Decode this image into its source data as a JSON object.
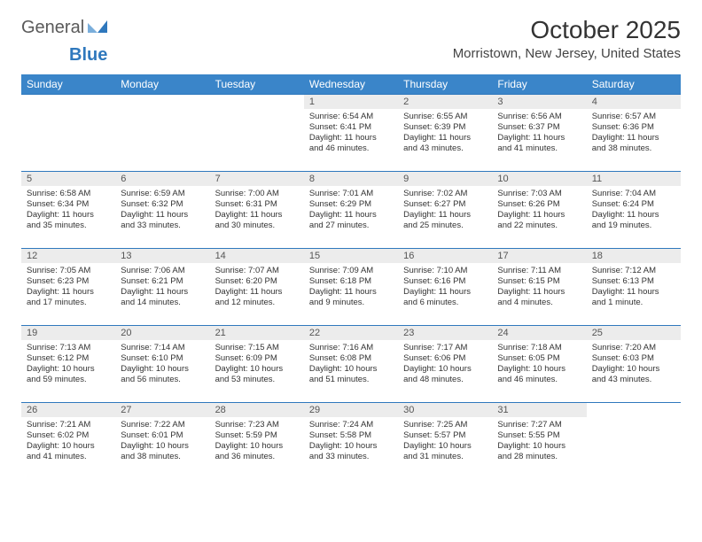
{
  "logo": {
    "text1": "General",
    "text2": "Blue"
  },
  "title": "October 2025",
  "location": "Morristown, New Jersey, United States",
  "colors": {
    "header_bg": "#3a85c9",
    "border": "#2f78bd",
    "daynum_bg": "#ececec",
    "text": "#333333"
  },
  "day_headers": [
    "Sunday",
    "Monday",
    "Tuesday",
    "Wednesday",
    "Thursday",
    "Friday",
    "Saturday"
  ],
  "weeks": [
    [
      null,
      null,
      null,
      {
        "n": "1",
        "sr": "Sunrise: 6:54 AM",
        "ss": "Sunset: 6:41 PM",
        "dl1": "Daylight: 11 hours",
        "dl2": "and 46 minutes."
      },
      {
        "n": "2",
        "sr": "Sunrise: 6:55 AM",
        "ss": "Sunset: 6:39 PM",
        "dl1": "Daylight: 11 hours",
        "dl2": "and 43 minutes."
      },
      {
        "n": "3",
        "sr": "Sunrise: 6:56 AM",
        "ss": "Sunset: 6:37 PM",
        "dl1": "Daylight: 11 hours",
        "dl2": "and 41 minutes."
      },
      {
        "n": "4",
        "sr": "Sunrise: 6:57 AM",
        "ss": "Sunset: 6:36 PM",
        "dl1": "Daylight: 11 hours",
        "dl2": "and 38 minutes."
      }
    ],
    [
      {
        "n": "5",
        "sr": "Sunrise: 6:58 AM",
        "ss": "Sunset: 6:34 PM",
        "dl1": "Daylight: 11 hours",
        "dl2": "and 35 minutes."
      },
      {
        "n": "6",
        "sr": "Sunrise: 6:59 AM",
        "ss": "Sunset: 6:32 PM",
        "dl1": "Daylight: 11 hours",
        "dl2": "and 33 minutes."
      },
      {
        "n": "7",
        "sr": "Sunrise: 7:00 AM",
        "ss": "Sunset: 6:31 PM",
        "dl1": "Daylight: 11 hours",
        "dl2": "and 30 minutes."
      },
      {
        "n": "8",
        "sr": "Sunrise: 7:01 AM",
        "ss": "Sunset: 6:29 PM",
        "dl1": "Daylight: 11 hours",
        "dl2": "and 27 minutes."
      },
      {
        "n": "9",
        "sr": "Sunrise: 7:02 AM",
        "ss": "Sunset: 6:27 PM",
        "dl1": "Daylight: 11 hours",
        "dl2": "and 25 minutes."
      },
      {
        "n": "10",
        "sr": "Sunrise: 7:03 AM",
        "ss": "Sunset: 6:26 PM",
        "dl1": "Daylight: 11 hours",
        "dl2": "and 22 minutes."
      },
      {
        "n": "11",
        "sr": "Sunrise: 7:04 AM",
        "ss": "Sunset: 6:24 PM",
        "dl1": "Daylight: 11 hours",
        "dl2": "and 19 minutes."
      }
    ],
    [
      {
        "n": "12",
        "sr": "Sunrise: 7:05 AM",
        "ss": "Sunset: 6:23 PM",
        "dl1": "Daylight: 11 hours",
        "dl2": "and 17 minutes."
      },
      {
        "n": "13",
        "sr": "Sunrise: 7:06 AM",
        "ss": "Sunset: 6:21 PM",
        "dl1": "Daylight: 11 hours",
        "dl2": "and 14 minutes."
      },
      {
        "n": "14",
        "sr": "Sunrise: 7:07 AM",
        "ss": "Sunset: 6:20 PM",
        "dl1": "Daylight: 11 hours",
        "dl2": "and 12 minutes."
      },
      {
        "n": "15",
        "sr": "Sunrise: 7:09 AM",
        "ss": "Sunset: 6:18 PM",
        "dl1": "Daylight: 11 hours",
        "dl2": "and 9 minutes."
      },
      {
        "n": "16",
        "sr": "Sunrise: 7:10 AM",
        "ss": "Sunset: 6:16 PM",
        "dl1": "Daylight: 11 hours",
        "dl2": "and 6 minutes."
      },
      {
        "n": "17",
        "sr": "Sunrise: 7:11 AM",
        "ss": "Sunset: 6:15 PM",
        "dl1": "Daylight: 11 hours",
        "dl2": "and 4 minutes."
      },
      {
        "n": "18",
        "sr": "Sunrise: 7:12 AM",
        "ss": "Sunset: 6:13 PM",
        "dl1": "Daylight: 11 hours",
        "dl2": "and 1 minute."
      }
    ],
    [
      {
        "n": "19",
        "sr": "Sunrise: 7:13 AM",
        "ss": "Sunset: 6:12 PM",
        "dl1": "Daylight: 10 hours",
        "dl2": "and 59 minutes."
      },
      {
        "n": "20",
        "sr": "Sunrise: 7:14 AM",
        "ss": "Sunset: 6:10 PM",
        "dl1": "Daylight: 10 hours",
        "dl2": "and 56 minutes."
      },
      {
        "n": "21",
        "sr": "Sunrise: 7:15 AM",
        "ss": "Sunset: 6:09 PM",
        "dl1": "Daylight: 10 hours",
        "dl2": "and 53 minutes."
      },
      {
        "n": "22",
        "sr": "Sunrise: 7:16 AM",
        "ss": "Sunset: 6:08 PM",
        "dl1": "Daylight: 10 hours",
        "dl2": "and 51 minutes."
      },
      {
        "n": "23",
        "sr": "Sunrise: 7:17 AM",
        "ss": "Sunset: 6:06 PM",
        "dl1": "Daylight: 10 hours",
        "dl2": "and 48 minutes."
      },
      {
        "n": "24",
        "sr": "Sunrise: 7:18 AM",
        "ss": "Sunset: 6:05 PM",
        "dl1": "Daylight: 10 hours",
        "dl2": "and 46 minutes."
      },
      {
        "n": "25",
        "sr": "Sunrise: 7:20 AM",
        "ss": "Sunset: 6:03 PM",
        "dl1": "Daylight: 10 hours",
        "dl2": "and 43 minutes."
      }
    ],
    [
      {
        "n": "26",
        "sr": "Sunrise: 7:21 AM",
        "ss": "Sunset: 6:02 PM",
        "dl1": "Daylight: 10 hours",
        "dl2": "and 41 minutes."
      },
      {
        "n": "27",
        "sr": "Sunrise: 7:22 AM",
        "ss": "Sunset: 6:01 PM",
        "dl1": "Daylight: 10 hours",
        "dl2": "and 38 minutes."
      },
      {
        "n": "28",
        "sr": "Sunrise: 7:23 AM",
        "ss": "Sunset: 5:59 PM",
        "dl1": "Daylight: 10 hours",
        "dl2": "and 36 minutes."
      },
      {
        "n": "29",
        "sr": "Sunrise: 7:24 AM",
        "ss": "Sunset: 5:58 PM",
        "dl1": "Daylight: 10 hours",
        "dl2": "and 33 minutes."
      },
      {
        "n": "30",
        "sr": "Sunrise: 7:25 AM",
        "ss": "Sunset: 5:57 PM",
        "dl1": "Daylight: 10 hours",
        "dl2": "and 31 minutes."
      },
      {
        "n": "31",
        "sr": "Sunrise: 7:27 AM",
        "ss": "Sunset: 5:55 PM",
        "dl1": "Daylight: 10 hours",
        "dl2": "and 28 minutes."
      },
      null
    ]
  ]
}
